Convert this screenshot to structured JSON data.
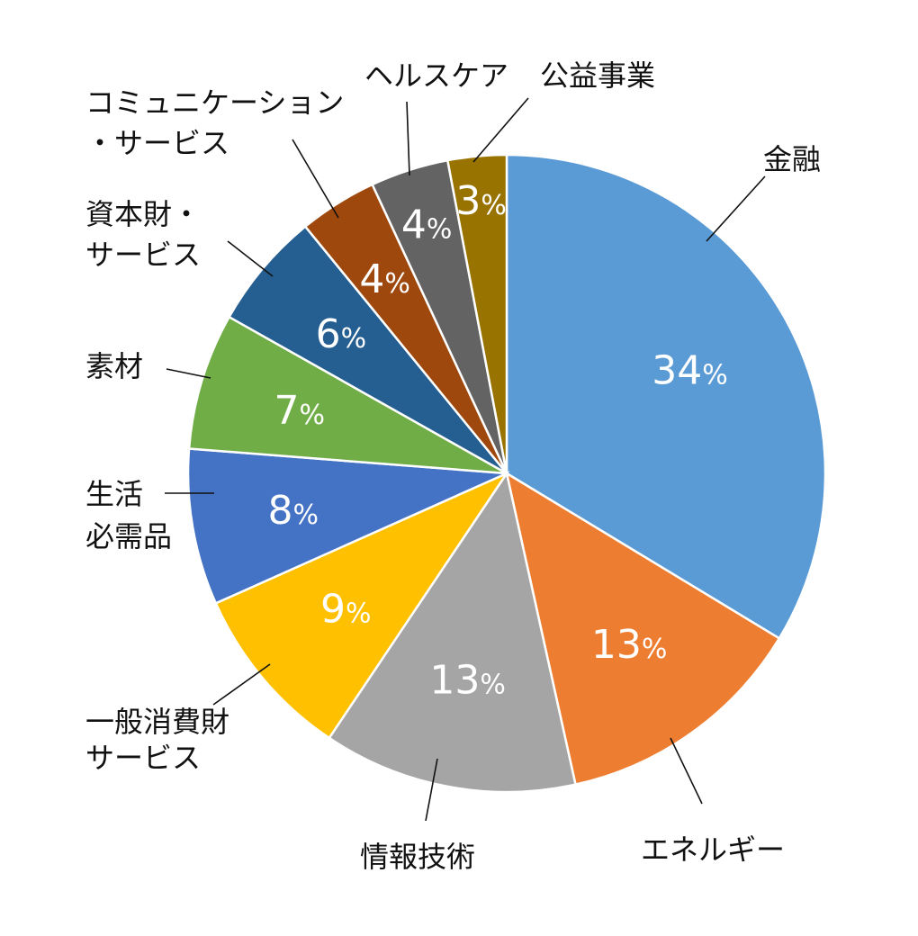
{
  "chart_data": {
    "type": "pie",
    "title": "",
    "slices": [
      {
        "label": "金融",
        "value": 34,
        "display": "34%",
        "color": "#5B9BD5"
      },
      {
        "label": "エネルギー",
        "value": 13,
        "display": "13%",
        "color": "#ED7D31"
      },
      {
        "label": "情報技術",
        "value": 13,
        "display": "13%",
        "color": "#A5A5A5"
      },
      {
        "label": "一般消費財\nサービス",
        "value": 9,
        "display": "9%",
        "color": "#FFC000"
      },
      {
        "label": "生活\n必需品",
        "value": 8,
        "display": "8%",
        "color": "#4472C4"
      },
      {
        "label": "素材",
        "value": 7,
        "display": "7%",
        "color": "#70AD47"
      },
      {
        "label": "資本財・\nサービス",
        "value": 6,
        "display": "6%",
        "color": "#255E91"
      },
      {
        "label": "コミュニケーション\n・サービス",
        "value": 4,
        "display": "4%",
        "color": "#9E480E"
      },
      {
        "label": "ヘルスケア",
        "value": 4,
        "display": "4%",
        "color": "#636363"
      },
      {
        "label": "公益事業",
        "value": 3,
        "display": "3%",
        "color": "#997300"
      }
    ],
    "legend": "none",
    "start_angle": "12 o'clock",
    "direction": "clockwise"
  }
}
